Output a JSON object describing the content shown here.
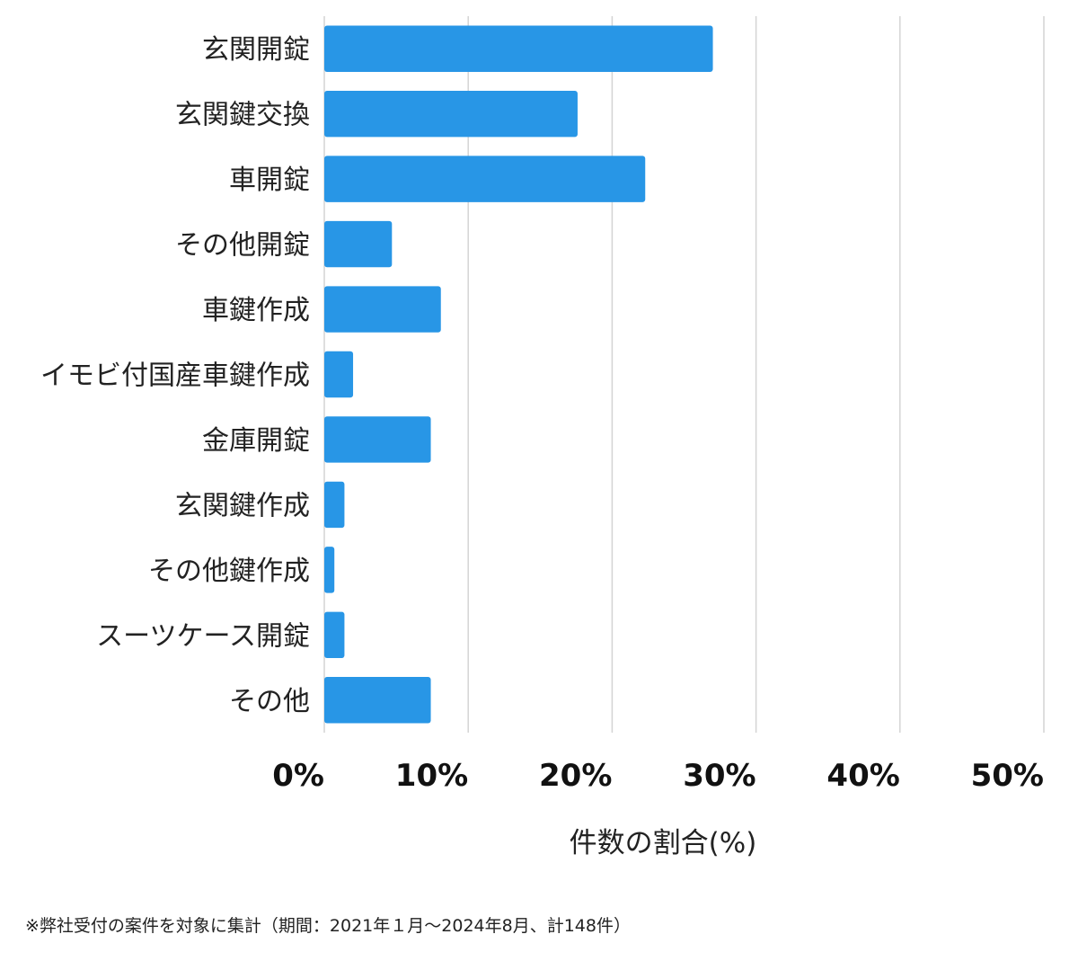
{
  "chart_data": {
    "type": "bar",
    "orientation": "horizontal",
    "categories": [
      "玄関開錠",
      "玄関鍵交換",
      "車開錠",
      "その他開錠",
      "車鍵作成",
      "イモビ付国産車鍵作成",
      "金庫開錠",
      "玄関鍵作成",
      "その他鍵作成",
      "スーツケース開錠",
      "その他"
    ],
    "values": [
      27.0,
      17.6,
      22.3,
      4.7,
      8.1,
      2.0,
      7.4,
      1.4,
      0.7,
      1.4,
      7.4
    ],
    "xlim": [
      0,
      50
    ],
    "ticks": [
      0,
      10,
      20,
      30,
      40,
      50
    ],
    "tick_labels": [
      "0%",
      "10%",
      "20%",
      "30%",
      "40%",
      "50%"
    ],
    "xlabel": "件数の割合(%)",
    "ylabel": "",
    "grid": "vertical",
    "bar_color": "#2896e6",
    "grid_color": "#d4d4d4"
  },
  "footnote": "※弊社受付の案件を対象に集計（期間：2021年１月〜2024年8月、計148件）"
}
